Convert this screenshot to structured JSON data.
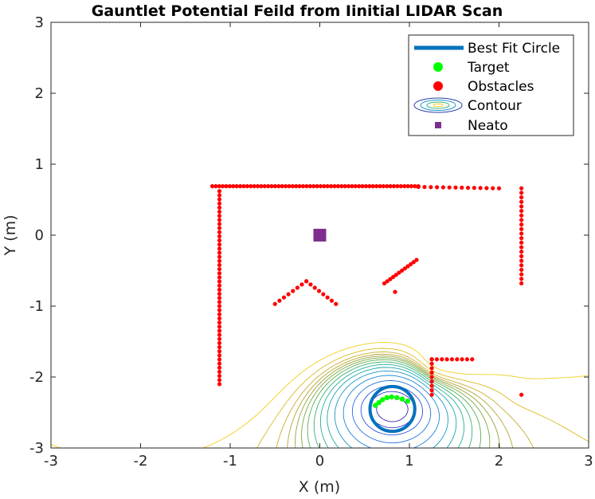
{
  "chart_data": {
    "type": "scatter",
    "title": "Gauntlet Potential Feild from Iinitial LIDAR Scan",
    "xlabel": "X (m)",
    "ylabel": "Y (m)",
    "xlim": [
      -3,
      3
    ],
    "ylim": [
      -3,
      3
    ],
    "xticks": [
      "-3",
      "-2",
      "-1",
      "0",
      "1",
      "2",
      "3"
    ],
    "yticks": [
      "-3",
      "-2",
      "-1",
      "0",
      "1",
      "2",
      "3"
    ],
    "grid": false,
    "legend_position": "top-right",
    "legend": [
      "Best Fit Circle",
      "Target",
      "Obstacles",
      "Contour",
      "Neato"
    ],
    "colors": {
      "circle": "#0072BD",
      "target": "#00FF00",
      "obstacles": "#FF0000",
      "neato": "#7E2F8E"
    },
    "best_fit_circle": {
      "center": [
        0.81,
        -2.45
      ],
      "radius": 0.25
    },
    "neato": [
      0,
      0
    ],
    "target_points": [
      [
        0.62,
        -2.4
      ],
      [
        0.66,
        -2.36
      ],
      [
        0.7,
        -2.32
      ],
      [
        0.75,
        -2.29
      ],
      [
        0.8,
        -2.28
      ],
      [
        0.86,
        -2.29
      ],
      [
        0.92,
        -2.31
      ],
      [
        0.98,
        -2.34
      ]
    ],
    "obstacle_segments": [
      {
        "from": [
          -1.2,
          0.69
        ],
        "to": [
          1.1,
          0.69
        ],
        "n": 60
      },
      {
        "from": [
          1.1,
          0.68
        ],
        "to": [
          2.0,
          0.66
        ],
        "n": 14
      },
      {
        "from": [
          -1.12,
          0.62
        ],
        "to": [
          -1.12,
          -2.1
        ],
        "n": 48
      },
      {
        "from": [
          2.25,
          0.66
        ],
        "to": [
          2.25,
          -0.68
        ],
        "n": 22
      },
      {
        "from": [
          -0.5,
          -0.97
        ],
        "to": [
          -0.15,
          -0.65
        ],
        "n": 8
      },
      {
        "from": [
          -0.15,
          -0.65
        ],
        "to": [
          0.18,
          -0.97
        ],
        "n": 8
      },
      {
        "from": [
          0.72,
          -0.68
        ],
        "to": [
          1.08,
          -0.35
        ],
        "n": 12
      },
      {
        "from": [
          1.25,
          -1.75
        ],
        "to": [
          1.25,
          -2.25
        ],
        "n": 9
      },
      {
        "from": [
          1.25,
          -1.75
        ],
        "to": [
          1.7,
          -1.75
        ],
        "n": 9
      }
    ],
    "obstacle_points": [
      [
        0.84,
        -0.8
      ],
      [
        2.25,
        -2.25
      ]
    ],
    "contour_levels": [
      {
        "level": 0.35,
        "color": "#F2CF1E"
      },
      {
        "level": 0.2,
        "color": "#DDBB22"
      },
      {
        "level": 0.1,
        "color": "#C9AE2E"
      },
      {
        "level": 0.03,
        "color": "#B2A434"
      },
      {
        "level": -0.03,
        "color": "#97A23A"
      },
      {
        "level": -0.09,
        "color": "#7CA845"
      },
      {
        "level": -0.16,
        "color": "#5AAE52"
      },
      {
        "level": -0.25,
        "color": "#38B073"
      },
      {
        "level": -0.36,
        "color": "#23AE93"
      },
      {
        "level": -0.5,
        "color": "#1AA6AE"
      },
      {
        "level": -0.7,
        "color": "#1A98C6"
      },
      {
        "level": -1.0,
        "color": "#1A86D8"
      },
      {
        "level": -1.45,
        "color": "#2270E0"
      },
      {
        "level": -2.1,
        "color": "#2D56DC"
      },
      {
        "level": -3.1,
        "color": "#3840C8"
      },
      {
        "level": -4.6,
        "color": "#3A2FAF"
      }
    ]
  }
}
